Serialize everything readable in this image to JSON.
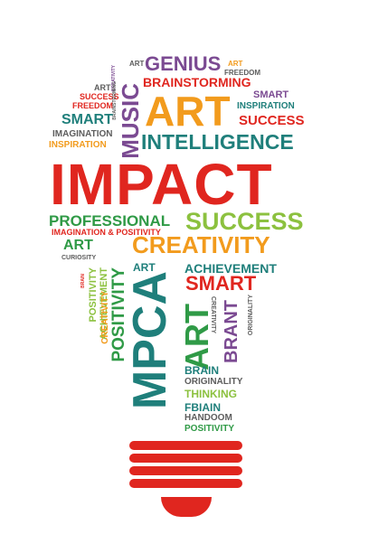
{
  "colors": {
    "red": "#e0261f",
    "orange": "#f29b1d",
    "green": "#2f9a46",
    "lime": "#8cc13f",
    "teal": "#1f7f7b",
    "purple": "#7b4a92",
    "grey": "#5d5d5d"
  },
  "words": {
    "genius": "GENIUS",
    "art_top": "ART",
    "freedom_top": "FREEDOM",
    "art_top2": "ART",
    "art_r1": "ART",
    "brainstorming": "BRAINSTORMING",
    "creative_tiny": "CREATIVITY",
    "art_l1": "ART",
    "success_l1": "SUCCESS",
    "freedom_l1": "FREEDOM",
    "music": "MUSIC",
    "brainstorming_tiny": "BRAINSTORMING",
    "art_big": "ART",
    "smart_r": "SMART",
    "inspiration_r": "INSPIRATION",
    "success_r": "SUCCESS",
    "smart_l": "SMART",
    "imagination_l": "IMAGINATION",
    "inspiration_l": "INSPIRATION",
    "intelligence": "INTELLIGENCE",
    "impact": "IMPACT",
    "professional": "PROFESSIONAL",
    "success_big": "SUCCESS",
    "imagination_positivity": "IMAGINATION & POSITIVITY",
    "art_mid": "ART",
    "curiosity": "CURIOSITY",
    "creativity": "CREATIVITY",
    "art_small": "ART",
    "achievement": "ACHIEVEMENT",
    "smart_mid": "SMART",
    "mpca_big": "MPCA",
    "positivity_v": "POSITIVITY",
    "achievement_v": "ACHIEVEMENT",
    "positivity_v2": "POSITIVITY",
    "brain_v": "BRAIN",
    "creative_v": "CREATIVITY",
    "art_v": "ART",
    "brant_v": "BRANT",
    "creativity_v2": "CREATIVITY",
    "originality_v": "ORIGINALITY",
    "brain": "BRAIN",
    "originality": "ORIGINALITY",
    "thinking": "THINKING",
    "fbiain": "FBIAIN",
    "handoom": "HANDOOM",
    "positivity": "POSITIVITY"
  }
}
